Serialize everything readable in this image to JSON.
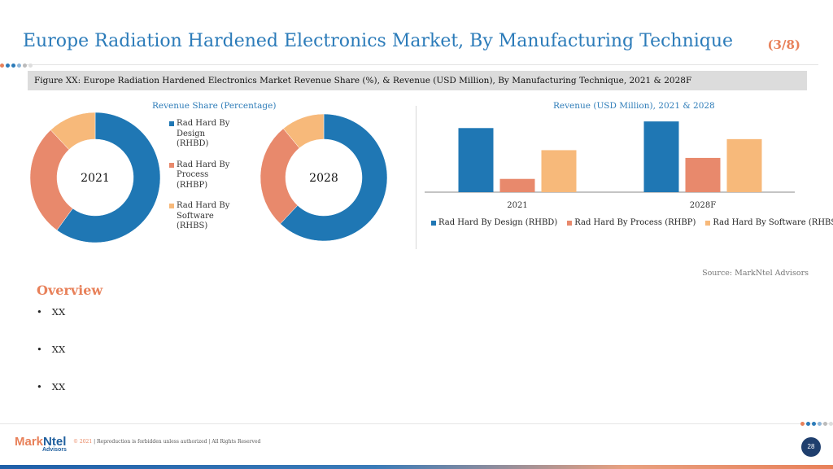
{
  "header": {
    "title": "Europe Radiation Hardened Electronics Market, By Manufacturing Technique",
    "page_count": "(3/8)"
  },
  "figure_caption": "Figure XX: Europe Radiation Hardened Electronics Market Revenue Share (%),  & Revenue (USD Million), By Manufacturing Technique, 2021 & 2028F",
  "colors": {
    "rhbd": "#1f77b4",
    "rhbp": "#e8896c",
    "rhbs": "#f7b97a",
    "accent": "#e8815a",
    "title": "#2b7bb9"
  },
  "chart_data": [
    {
      "type": "pie",
      "title": "Revenue Share (Percentage)",
      "donuts": [
        {
          "label": "2021",
          "values": [
            60,
            28,
            12
          ]
        },
        {
          "label": "2028",
          "values": [
            62,
            27,
            11
          ]
        }
      ],
      "categories": [
        "Rad Hard By Design (RHBD)",
        "Rad Hard By Process (RHBP)",
        "Rad Hard By Software (RHBS)"
      ],
      "legend_labels": [
        "Rad Hard By Design (RHBD)",
        "Rad Hard By Process (RHBP)",
        "Rad Hard By Software (RHBS)"
      ],
      "legend": "right"
    },
    {
      "type": "bar",
      "title": "Revenue (USD Million), 2021 & 2028",
      "categories": [
        "2021",
        "2028F"
      ],
      "series": [
        {
          "name": "Rad Hard By Design (RHBD)",
          "values": [
            58,
            64
          ]
        },
        {
          "name": "Rad Hard By Process (RHBP)",
          "values": [
            12,
            31
          ]
        },
        {
          "name": "Rad Hard By Software (RHBS)",
          "values": [
            38,
            48
          ]
        }
      ],
      "ylim": [
        0,
        70
      ],
      "grid": false,
      "legend": "bottom"
    }
  ],
  "source": "Source: MarkNtel Advisors",
  "overview": {
    "heading": "Overview",
    "bullet_char": "•",
    "bullets": [
      "XX",
      "XX",
      "XX"
    ]
  },
  "footer": {
    "logo_part1": "Mark",
    "logo_part2": "Ntel",
    "logo_sub": "Advisors",
    "year": "© 2021",
    "copyright": " | Reproduction is forbidden unless authorized | All Rights Reserved",
    "page_number": "28"
  }
}
